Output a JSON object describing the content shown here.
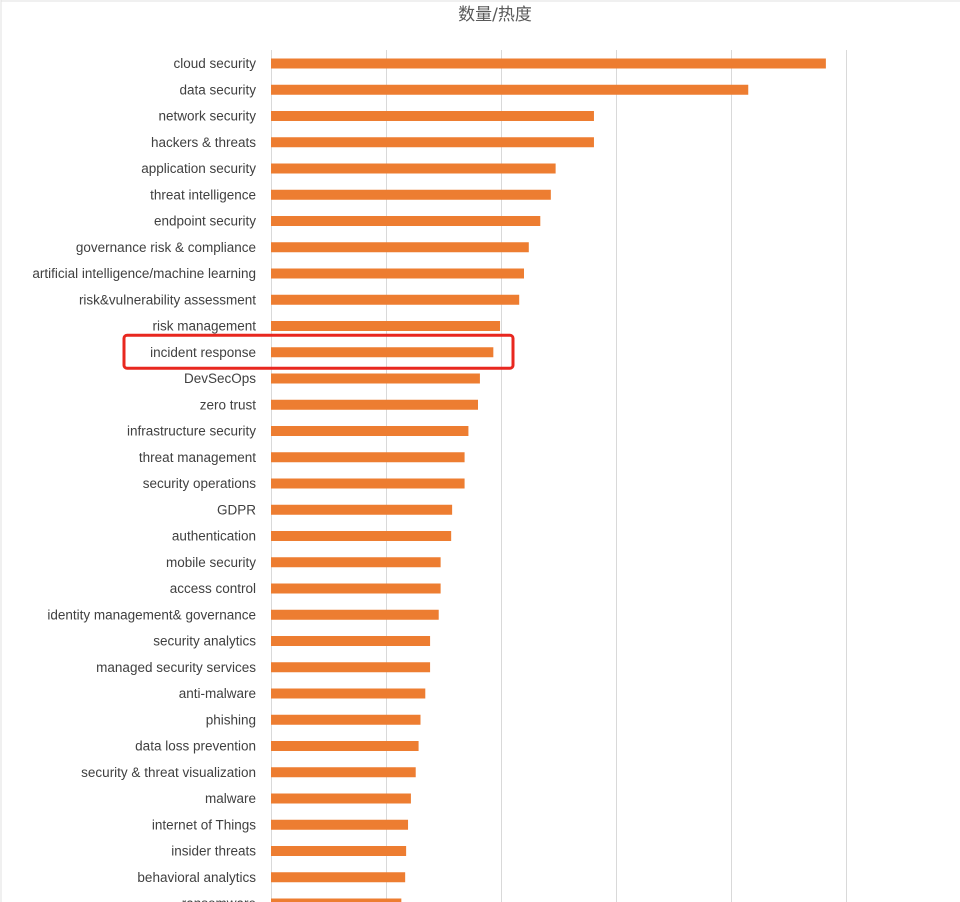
{
  "chart_data": {
    "type": "bar",
    "orientation": "horizontal",
    "title": "数量/热度",
    "xlabel": "",
    "ylabel": "",
    "xlim": [
      0,
      600
    ],
    "grid": true,
    "legend": "none",
    "bar_color": "#ED7D31",
    "highlight_color": "#E8271F",
    "highlight_category": "incident response",
    "categories": [
      "cloud security",
      "data security",
      "network security",
      "hackers & threats",
      "application security",
      "threat intelligence",
      "endpoint security",
      "governance risk & compliance ",
      "artificial intelligence/machine learning",
      "risk&vulnerability assessment",
      "risk management",
      "incident response",
      "DevSecOps",
      "zero trust",
      "infrastructure security",
      "threat management",
      "security operations",
      "GDPR",
      "authentication",
      "mobile security",
      "access control",
      "identity management& governance",
      "security analytics",
      "managed security services ",
      "anti-malware",
      "phishing",
      "data loss prevention",
      "security & threat visualization",
      "malware",
      "internet of Things",
      "insider threats",
      "behavioral analytics",
      "ransomware"
    ],
    "values": [
      579,
      498,
      337,
      337,
      297,
      292,
      281,
      269,
      264,
      259,
      239,
      232,
      218,
      216,
      206,
      202,
      202,
      189,
      188,
      177,
      177,
      175,
      166,
      166,
      161,
      156,
      154,
      151,
      146,
      143,
      141,
      140,
      136
    ]
  }
}
